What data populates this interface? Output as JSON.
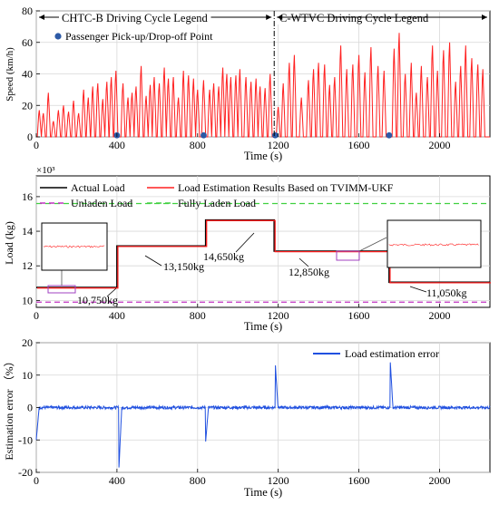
{
  "chart_data": [
    {
      "type": "line",
      "xlabel": "Time (s)",
      "ylabel": "Speed (km/h)",
      "xlim": [
        0,
        2250
      ],
      "ylim": [
        0,
        80
      ],
      "xticks": [
        0,
        400,
        800,
        1200,
        1600,
        2000
      ],
      "yticks": [
        0,
        20,
        40,
        60,
        80
      ],
      "grid": true,
      "divider_x": 1180,
      "region_labels": [
        "CHTC-B Driving Cycle Legend",
        "C-WTVC Driving Cycle Legend"
      ],
      "legend": {
        "label": "Passenger Pick-up/Drop-off Point",
        "color": "#2d5aa6",
        "placement": "top-left"
      },
      "series": [
        {
          "color": "#ff2020",
          "peaks": [
            [
              15,
              17
            ],
            [
              35,
              15
            ],
            [
              60,
              28
            ],
            [
              85,
              10
            ],
            [
              110,
              17
            ],
            [
              135,
              20
            ],
            [
              160,
              16
            ],
            [
              185,
              23
            ],
            [
              210,
              15
            ],
            [
              235,
              30
            ],
            [
              258,
              25
            ],
            [
              280,
              32
            ],
            [
              305,
              34
            ],
            [
              330,
              24
            ],
            [
              350,
              35
            ],
            [
              372,
              38
            ],
            [
              395,
              42
            ],
            [
              430,
              34
            ],
            [
              455,
              25
            ],
            [
              475,
              28
            ],
            [
              495,
              32
            ],
            [
              520,
              45
            ],
            [
              545,
              26
            ],
            [
              565,
              33
            ],
            [
              585,
              38
            ],
            [
              610,
              34
            ],
            [
              635,
              44
            ],
            [
              655,
              37
            ],
            [
              680,
              38
            ],
            [
              705,
              25
            ],
            [
              730,
              42
            ],
            [
              755,
              39
            ],
            [
              780,
              37
            ],
            [
              800,
              30
            ],
            [
              830,
              36
            ],
            [
              860,
              30
            ],
            [
              880,
              34
            ],
            [
              905,
              32
            ],
            [
              925,
              44
            ],
            [
              945,
              40
            ],
            [
              965,
              38
            ],
            [
              990,
              39
            ],
            [
              1010,
              43
            ],
            [
              1040,
              38
            ],
            [
              1065,
              35
            ],
            [
              1090,
              37
            ],
            [
              1110,
              32
            ],
            [
              1135,
              31
            ],
            [
              1160,
              40
            ],
            [
              1200,
              19
            ],
            [
              1225,
              34
            ],
            [
              1255,
              47
            ],
            [
              1280,
              52
            ],
            [
              1315,
              25
            ],
            [
              1350,
              36
            ],
            [
              1375,
              43
            ],
            [
              1400,
              47
            ],
            [
              1430,
              46
            ],
            [
              1455,
              33
            ],
            [
              1480,
              38
            ],
            [
              1510,
              58
            ],
            [
              1540,
              43
            ],
            [
              1570,
              46
            ],
            [
              1600,
              52
            ],
            [
              1630,
              41
            ],
            [
              1660,
              57
            ],
            [
              1695,
              45
            ],
            [
              1725,
              42
            ],
            [
              1775,
              56
            ],
            [
              1800,
              66
            ],
            [
              1830,
              40
            ],
            [
              1860,
              47
            ],
            [
              1885,
              28
            ],
            [
              1910,
              45
            ],
            [
              1940,
              38
            ],
            [
              1965,
              58
            ],
            [
              1990,
              42
            ],
            [
              2020,
              55
            ],
            [
              2050,
              60
            ],
            [
              2080,
              35
            ],
            [
              2105,
              45
            ],
            [
              2130,
              58
            ],
            [
              2160,
              50
            ],
            [
              2190,
              46
            ],
            [
              2215,
              43
            ]
          ]
        }
      ],
      "marker_points": [
        [
          400,
          1
        ],
        [
          830,
          1
        ],
        [
          1185,
          1
        ],
        [
          1750,
          1
        ]
      ]
    },
    {
      "type": "line",
      "xlabel": "Time (s)",
      "ylabel": "Load (kg)",
      "y_multiplier_label": "×10³",
      "xlim": [
        0,
        2250
      ],
      "ylim": [
        9.6,
        17.2
      ],
      "xticks": [
        0,
        400,
        800,
        1200,
        1600,
        2000
      ],
      "yticks": [
        10,
        12,
        14,
        16
      ],
      "grid": true,
      "legend_rows": [
        [
          {
            "name": "Actual Load",
            "color": "#000000",
            "dash": ""
          },
          {
            "name": "Load Estimation Results Based on TVIMM-UKF",
            "color": "#ff2020",
            "dash": ""
          }
        ],
        [
          {
            "name": "Unladen Load",
            "color": "#c030c0",
            "dash": "6,4"
          },
          {
            "name": "Fully Laden Load",
            "color": "#40d040",
            "dash": "6,4"
          }
        ]
      ],
      "unladen_load": 9.9,
      "fully_laden_load": 15.6,
      "steps": [
        [
          0,
          400,
          10.75
        ],
        [
          400,
          840,
          13.15
        ],
        [
          840,
          1180,
          14.65
        ],
        [
          1180,
          1750,
          12.85
        ],
        [
          1750,
          2250,
          11.05
        ]
      ],
      "annotations": [
        "10,750kg",
        "13,150kg",
        "14,650kg",
        "12,850kg",
        "11,050kg"
      ]
    },
    {
      "type": "line",
      "xlabel": "Time (s)",
      "ylabel": "Estimation error （%）",
      "xlim": [
        0,
        2250
      ],
      "ylim": [
        -20,
        20
      ],
      "xticks": [
        0,
        400,
        800,
        1200,
        1600,
        2000
      ],
      "yticks": [
        -20,
        -10,
        0,
        10,
        20
      ],
      "grid": true,
      "legend": {
        "label": "Load estimation error",
        "color": "#2050e0",
        "placement": "top-right"
      },
      "spikes": [
        [
          0,
          -10
        ],
        [
          410,
          -18.5
        ],
        [
          840,
          -10.5
        ],
        [
          1185,
          14
        ],
        [
          1755,
          15
        ]
      ]
    }
  ]
}
